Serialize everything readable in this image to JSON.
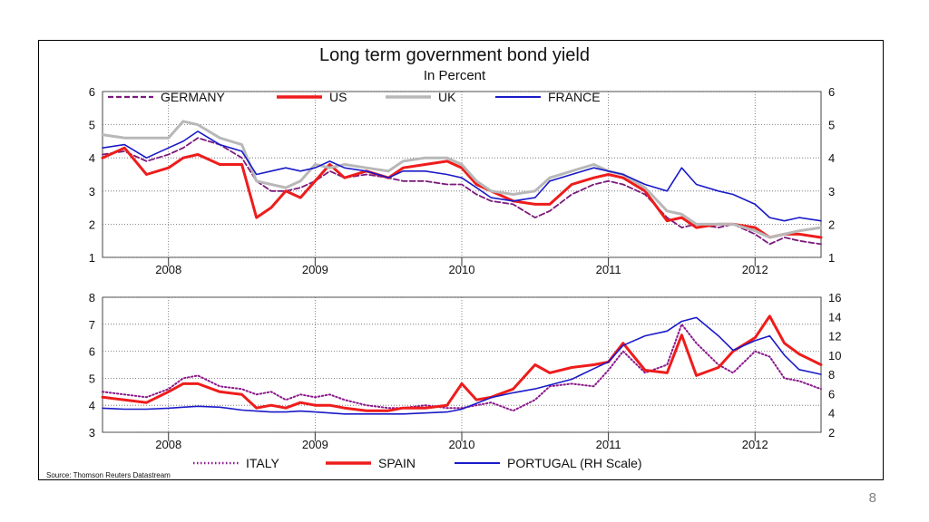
{
  "slide_number": "8",
  "source": "Source: Thomson Reuters Datastream",
  "colors": {
    "germany": "#7b1a7b",
    "us": "#ee1c1c",
    "uk": "#b8b8b8",
    "france": "#1a1ac8",
    "italy": "#8b1a8b",
    "spain": "#ee1c1c",
    "portugal": "#1a1ac8",
    "grid": "#666666"
  },
  "chart_data": [
    {
      "type": "line",
      "title": "Long term government bond yield",
      "subtitle": "In Percent",
      "x_tick_labels": [
        "2008",
        "2009",
        "2010",
        "2011",
        "2012"
      ],
      "x_range": [
        2007.55,
        2012.45
      ],
      "y_ticks": [
        1,
        2,
        3,
        4,
        5,
        6
      ],
      "ylim": [
        1,
        6
      ],
      "right_axis_ticks": [
        1,
        2,
        3,
        4,
        5,
        6
      ],
      "grid": true,
      "legend_position": "top",
      "series": [
        {
          "name": "GERMANY",
          "style": "dashed",
          "x": [
            2007.55,
            2007.7,
            2007.85,
            2008.0,
            2008.1,
            2008.2,
            2008.35,
            2008.5,
            2008.6,
            2008.7,
            2008.8,
            2008.9,
            2009.0,
            2009.1,
            2009.2,
            2009.35,
            2009.5,
            2009.6,
            2009.75,
            2009.9,
            2010.0,
            2010.1,
            2010.2,
            2010.35,
            2010.5,
            2010.6,
            2010.75,
            2010.9,
            2011.0,
            2011.1,
            2011.25,
            2011.4,
            2011.5,
            2011.6,
            2011.75,
            2011.85,
            2012.0,
            2012.1,
            2012.2,
            2012.3,
            2012.45
          ],
          "y": [
            4.1,
            4.2,
            3.9,
            4.1,
            4.3,
            4.6,
            4.4,
            4.0,
            3.3,
            3.0,
            3.0,
            3.1,
            3.3,
            3.6,
            3.4,
            3.5,
            3.4,
            3.3,
            3.3,
            3.2,
            3.2,
            2.9,
            2.7,
            2.6,
            2.2,
            2.4,
            2.9,
            3.2,
            3.3,
            3.2,
            2.9,
            2.2,
            1.9,
            2.0,
            1.9,
            2.0,
            1.7,
            1.4,
            1.6,
            1.5,
            1.4
          ]
        },
        {
          "name": "US",
          "style": "solid-thick",
          "x": [
            2007.55,
            2007.7,
            2007.85,
            2008.0,
            2008.1,
            2008.2,
            2008.35,
            2008.5,
            2008.6,
            2008.7,
            2008.8,
            2008.9,
            2009.0,
            2009.1,
            2009.2,
            2009.35,
            2009.5,
            2009.6,
            2009.75,
            2009.9,
            2010.0,
            2010.1,
            2010.2,
            2010.35,
            2010.5,
            2010.6,
            2010.75,
            2010.9,
            2011.0,
            2011.1,
            2011.25,
            2011.4,
            2011.5,
            2011.6,
            2011.75,
            2011.85,
            2012.0,
            2012.1,
            2012.2,
            2012.3,
            2012.45
          ],
          "y": [
            4.0,
            4.3,
            3.5,
            3.7,
            4.0,
            4.1,
            3.8,
            3.8,
            2.2,
            2.5,
            3.0,
            2.8,
            3.3,
            3.8,
            3.4,
            3.6,
            3.4,
            3.7,
            3.8,
            3.9,
            3.7,
            3.2,
            3.0,
            2.7,
            2.6,
            2.6,
            3.2,
            3.4,
            3.5,
            3.4,
            3.0,
            2.1,
            2.2,
            1.9,
            2.0,
            2.0,
            1.9,
            1.6,
            1.7,
            1.7,
            1.6
          ]
        },
        {
          "name": "UK",
          "style": "solid-grey",
          "x": [
            2007.55,
            2007.7,
            2007.85,
            2008.0,
            2008.1,
            2008.2,
            2008.35,
            2008.5,
            2008.6,
            2008.7,
            2008.8,
            2008.9,
            2009.0,
            2009.1,
            2009.2,
            2009.35,
            2009.5,
            2009.6,
            2009.75,
            2009.9,
            2010.0,
            2010.1,
            2010.2,
            2010.35,
            2010.5,
            2010.6,
            2010.75,
            2010.9,
            2011.0,
            2011.1,
            2011.25,
            2011.4,
            2011.5,
            2011.6,
            2011.75,
            2011.85,
            2012.0,
            2012.1,
            2012.2,
            2012.3,
            2012.45
          ],
          "y": [
            4.7,
            4.6,
            4.6,
            4.6,
            5.1,
            5.0,
            4.6,
            4.4,
            3.3,
            3.2,
            3.1,
            3.3,
            3.8,
            3.7,
            3.8,
            3.7,
            3.6,
            3.9,
            4.0,
            4.0,
            3.8,
            3.3,
            3.0,
            2.9,
            3.0,
            3.4,
            3.6,
            3.8,
            3.6,
            3.5,
            3.1,
            2.4,
            2.3,
            2.0,
            2.0,
            2.0,
            1.8,
            1.6,
            1.7,
            1.8,
            1.9
          ]
        },
        {
          "name": "FRANCE",
          "style": "solid-thin",
          "x": [
            2007.55,
            2007.7,
            2007.85,
            2008.0,
            2008.1,
            2008.2,
            2008.35,
            2008.5,
            2008.6,
            2008.7,
            2008.8,
            2008.9,
            2009.0,
            2009.1,
            2009.2,
            2009.35,
            2009.5,
            2009.6,
            2009.75,
            2009.9,
            2010.0,
            2010.1,
            2010.2,
            2010.35,
            2010.5,
            2010.6,
            2010.75,
            2010.9,
            2011.0,
            2011.1,
            2011.25,
            2011.4,
            2011.5,
            2011.6,
            2011.75,
            2011.85,
            2012.0,
            2012.1,
            2012.2,
            2012.3,
            2012.45
          ],
          "y": [
            4.3,
            4.4,
            4.0,
            4.3,
            4.5,
            4.8,
            4.4,
            4.2,
            3.5,
            3.6,
            3.7,
            3.6,
            3.7,
            3.9,
            3.7,
            3.6,
            3.4,
            3.6,
            3.6,
            3.5,
            3.4,
            3.1,
            2.8,
            2.7,
            2.8,
            3.3,
            3.5,
            3.7,
            3.6,
            3.5,
            3.2,
            3.0,
            3.7,
            3.2,
            3.0,
            2.9,
            2.6,
            2.2,
            2.1,
            2.2,
            2.1
          ]
        }
      ]
    },
    {
      "type": "line",
      "x_tick_labels": [
        "2008",
        "2009",
        "2010",
        "2011",
        "2012"
      ],
      "x_range": [
        2007.55,
        2012.45
      ],
      "y_ticks": [
        3,
        4,
        5,
        6,
        7,
        8
      ],
      "ylim": [
        3,
        8
      ],
      "right_axis_ticks": [
        2,
        4,
        6,
        8,
        10,
        12,
        14,
        16
      ],
      "right_ylim": [
        2,
        16
      ],
      "grid": true,
      "legend_position": "bottom",
      "series": [
        {
          "name": "ITALY",
          "style": "dotted",
          "axis": "left",
          "x": [
            2007.55,
            2007.7,
            2007.85,
            2008.0,
            2008.1,
            2008.2,
            2008.35,
            2008.5,
            2008.6,
            2008.7,
            2008.8,
            2008.9,
            2009.0,
            2009.1,
            2009.2,
            2009.35,
            2009.5,
            2009.6,
            2009.75,
            2009.9,
            2010.0,
            2010.1,
            2010.2,
            2010.35,
            2010.5,
            2010.6,
            2010.75,
            2010.9,
            2011.0,
            2011.1,
            2011.25,
            2011.4,
            2011.5,
            2011.6,
            2011.75,
            2011.85,
            2012.0,
            2012.1,
            2012.2,
            2012.3,
            2012.45
          ],
          "y": [
            4.5,
            4.4,
            4.3,
            4.6,
            5.0,
            5.1,
            4.7,
            4.6,
            4.4,
            4.5,
            4.2,
            4.4,
            4.3,
            4.4,
            4.2,
            4.0,
            3.9,
            3.9,
            4.0,
            3.9,
            3.9,
            4.0,
            4.1,
            3.8,
            4.2,
            4.7,
            4.8,
            4.7,
            5.3,
            6.0,
            5.2,
            5.5,
            7.0,
            6.3,
            5.5,
            5.2,
            6.0,
            5.8,
            5.0,
            4.9,
            4.6
          ]
        },
        {
          "name": "SPAIN",
          "style": "solid-thick",
          "axis": "left",
          "x": [
            2007.55,
            2007.7,
            2007.85,
            2008.0,
            2008.1,
            2008.2,
            2008.35,
            2008.5,
            2008.6,
            2008.7,
            2008.8,
            2008.9,
            2009.0,
            2009.1,
            2009.2,
            2009.35,
            2009.5,
            2009.6,
            2009.75,
            2009.9,
            2010.0,
            2010.1,
            2010.2,
            2010.35,
            2010.5,
            2010.6,
            2010.75,
            2010.9,
            2011.0,
            2011.1,
            2011.25,
            2011.4,
            2011.5,
            2011.6,
            2011.75,
            2011.85,
            2012.0,
            2012.1,
            2012.2,
            2012.3,
            2012.45
          ],
          "y": [
            4.3,
            4.2,
            4.1,
            4.5,
            4.8,
            4.8,
            4.5,
            4.4,
            3.9,
            4.0,
            3.9,
            4.1,
            4.0,
            4.0,
            3.9,
            3.8,
            3.8,
            3.9,
            3.9,
            4.0,
            4.8,
            4.2,
            4.3,
            4.6,
            5.5,
            5.2,
            5.4,
            5.5,
            5.6,
            6.3,
            5.3,
            5.2,
            6.6,
            5.1,
            5.4,
            6.0,
            6.5,
            7.3,
            6.3,
            5.9,
            5.5
          ]
        },
        {
          "name": "PORTUGAL (RH Scale)",
          "style": "solid-thin",
          "axis": "right",
          "x": [
            2007.55,
            2007.7,
            2007.85,
            2008.0,
            2008.1,
            2008.2,
            2008.35,
            2008.5,
            2008.6,
            2008.7,
            2008.8,
            2008.9,
            2009.0,
            2009.1,
            2009.2,
            2009.35,
            2009.5,
            2009.6,
            2009.75,
            2009.9,
            2010.0,
            2010.1,
            2010.2,
            2010.35,
            2010.5,
            2010.6,
            2010.75,
            2010.9,
            2011.0,
            2011.1,
            2011.25,
            2011.4,
            2011.5,
            2011.6,
            2011.75,
            2011.85,
            2012.0,
            2012.1,
            2012.2,
            2012.3,
            2012.45
          ],
          "y": [
            4.5,
            4.4,
            4.4,
            4.5,
            4.6,
            4.7,
            4.6,
            4.3,
            4.2,
            4.1,
            4.1,
            4.2,
            4.1,
            4.0,
            3.9,
            3.9,
            3.9,
            3.9,
            4.0,
            4.1,
            4.4,
            5.0,
            5.6,
            6.1,
            6.5,
            6.9,
            7.5,
            8.6,
            9.3,
            11.0,
            12.0,
            12.5,
            13.5,
            13.9,
            12.0,
            10.5,
            11.5,
            12.0,
            10.0,
            8.5,
            8.0
          ]
        }
      ]
    }
  ]
}
